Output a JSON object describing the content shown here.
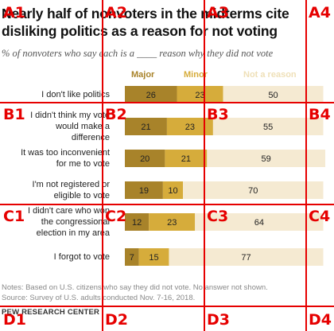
{
  "chart_data": {
    "type": "bar",
    "stacked": true,
    "orientation": "horizontal",
    "title": "Nearly half of nonvoters in the midterms cite disliking politics as a reason for not voting",
    "subtitle": "% of nonvoters who say each is a ____ reason why they did not vote",
    "categories": [
      [
        "I don't like politics"
      ],
      [
        "I didn't think my vote",
        "would make a",
        "difference"
      ],
      [
        "It was too inconvenient",
        "for me to vote"
      ],
      [
        "I'm not registered or",
        "eligible to vote"
      ],
      [
        "I didn't care who won",
        "the congressional",
        "election in my area"
      ],
      [
        "I forgot to vote"
      ]
    ],
    "series": [
      {
        "name": "Major",
        "color": "#a8832a",
        "values": [
          26,
          21,
          20,
          19,
          12,
          7
        ]
      },
      {
        "name": "Minor",
        "color": "#d6ac3b",
        "values": [
          23,
          23,
          21,
          10,
          23,
          15
        ]
      },
      {
        "name": "Not a reason",
        "color": "#f5ead2",
        "values": [
          50,
          55,
          59,
          70,
          64,
          77
        ]
      }
    ],
    "legend_colors": {
      "Major": "#a8832a",
      "Minor": "#d6ac3b",
      "Not a reason": "#efe0b8"
    },
    "xlim": [
      0,
      100
    ],
    "grid": false,
    "legend_position": "top"
  },
  "notes": "Notes: Based on U.S. citizens who say they did not vote. No answer not shown.",
  "source": "Source: Survey of U.S. adults conducted Nov. 7-16, 2018.",
  "organization": "PEW RESEARCH CENTER",
  "overlay": {
    "color": "#e60000",
    "cells": [
      "A1",
      "A2",
      "A3",
      "A4",
      "B1",
      "B2",
      "B3",
      "B4",
      "C1",
      "C2",
      "C3",
      "C4",
      "D1",
      "D2",
      "D3",
      "D4"
    ]
  }
}
